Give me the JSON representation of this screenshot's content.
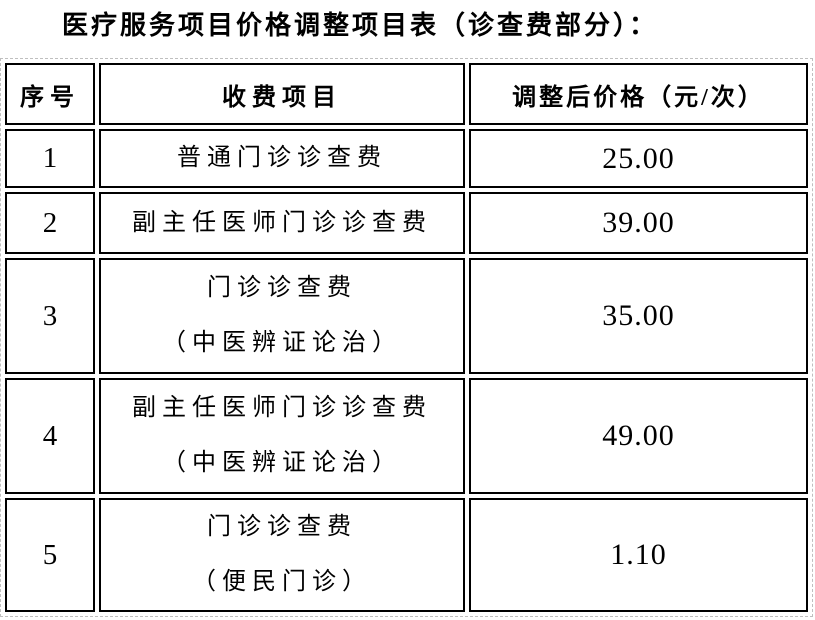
{
  "page": {
    "title": "医疗服务项目价格调整项目表（诊查费部分）："
  },
  "table": {
    "headers": [
      "序号",
      "收费项目",
      "调整后价格（元/次）"
    ],
    "rows": [
      {
        "no": "1",
        "item_lines": [
          "普通门诊诊查费"
        ],
        "price": "25.00"
      },
      {
        "no": "2",
        "item_lines": [
          "副主任医师门诊诊查费"
        ],
        "price": "39.00"
      },
      {
        "no": "3",
        "item_lines": [
          "门诊诊查费",
          "（中医辨证论治）"
        ],
        "price": "35.00"
      },
      {
        "no": "4",
        "item_lines": [
          "副主任医师门诊诊查费",
          "（中医辨证论治）"
        ],
        "price": "49.00"
      },
      {
        "no": "5",
        "item_lines": [
          "门诊诊查费",
          "（便民门诊）"
        ],
        "price": "1.10"
      }
    ]
  },
  "colors": {
    "text": "#000000",
    "cell_border": "#000000",
    "gridline_dashed": "#bfbfbf",
    "background": "#ffffff"
  }
}
